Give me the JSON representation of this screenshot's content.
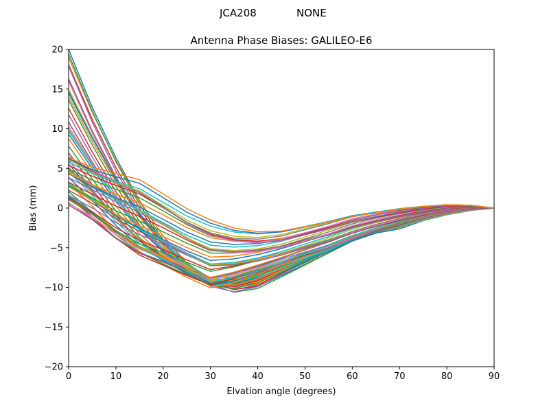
{
  "figure": {
    "suptitle_left": "JCA208",
    "suptitle_right": "NONE"
  },
  "chart_data": {
    "type": "line",
    "title": "Antenna Phase Biases: GALILEO-E6",
    "xlabel": "Elvation angle (degrees)",
    "ylabel": "Bias (mm)",
    "xlim": [
      0,
      90
    ],
    "ylim": [
      -20,
      20
    ],
    "xticks": [
      0,
      10,
      20,
      30,
      40,
      50,
      60,
      70,
      80,
      90
    ],
    "yticks": [
      -20,
      -15,
      -10,
      -5,
      0,
      5,
      10,
      15,
      20
    ],
    "xtick_labels": [
      "0",
      "10",
      "20",
      "30",
      "40",
      "50",
      "60",
      "70",
      "80",
      "90"
    ],
    "ytick_labels": [
      "−20",
      "−15",
      "−10",
      "−5",
      "0",
      "5",
      "10",
      "15",
      "20"
    ],
    "grid": false,
    "legend": "none",
    "x": [
      0,
      5,
      10,
      15,
      20,
      25,
      30,
      35,
      40,
      45,
      50,
      55,
      60,
      65,
      70,
      75,
      80,
      85,
      90
    ],
    "series_count": 72,
    "series_colors": [
      "#1f77b4",
      "#ff7f0e",
      "#2ca02c",
      "#d62728",
      "#9467bd",
      "#8c564b",
      "#e377c2",
      "#7f7f7f",
      "#bcbd22",
      "#17becf"
    ],
    "envelope_a": [
      20.0,
      12.5,
      6.0,
      0.5,
      -4.0,
      -7.5,
      -9.5,
      -10.5,
      -10.0,
      -8.5,
      -7.0,
      -5.5,
      -4.0,
      -3.0,
      -2.5,
      -1.5,
      -0.8,
      -0.3,
      0.0
    ],
    "envelope_b": [
      0.5,
      -1.5,
      -4.0,
      -6.0,
      -7.2,
      -8.5,
      -9.8,
      -9.0,
      -8.0,
      -7.0,
      -6.0,
      -5.0,
      -3.8,
      -2.8,
      -2.0,
      -1.2,
      -0.5,
      -0.1,
      0.0
    ],
    "envelope_c": [
      7.0,
      5.5,
      4.5,
      3.5,
      1.5,
      -0.5,
      -2.0,
      -3.0,
      -3.4,
      -3.2,
      -2.5,
      -1.8,
      -1.0,
      -0.5,
      0.0,
      0.3,
      0.5,
      0.4,
      0.0
    ]
  }
}
